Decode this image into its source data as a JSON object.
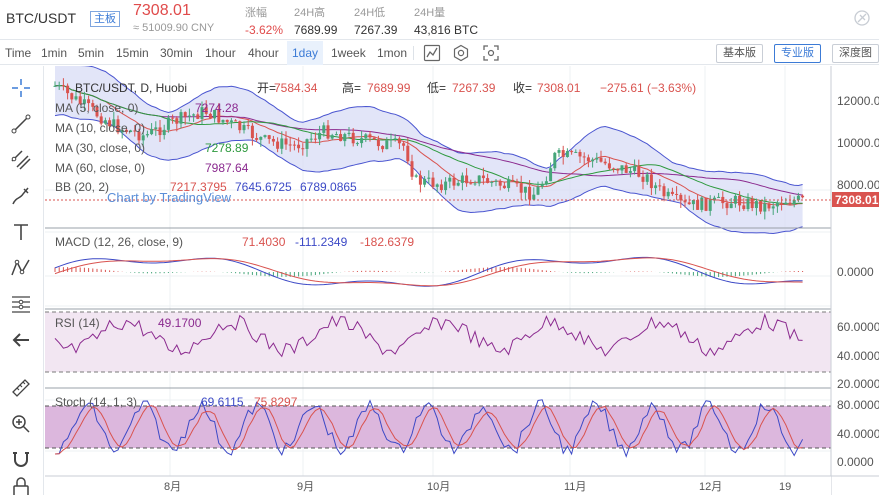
{
  "header": {
    "pair": "BTC/USDT",
    "board_badge": "主板",
    "last_price": "7308.01",
    "cny_price": "≈ 51009.90 CNY",
    "stats": [
      {
        "label": "涨幅",
        "value": "-3.62%",
        "negative": true
      },
      {
        "label": "24H高",
        "value": "7689.99",
        "negative": false
      },
      {
        "label": "24H低",
        "value": "7267.39",
        "negative": false
      },
      {
        "label": "24H量",
        "value": "43,816 BTC",
        "negative": false
      }
    ]
  },
  "toolbar": {
    "timeframes": [
      "Time",
      "1min",
      "5min",
      "15min",
      "30min",
      "1hour",
      "4hour",
      "1day",
      "1week",
      "1mon"
    ],
    "active_timeframe": "1day",
    "icons": [
      "indicator-icon",
      "settings-icon",
      "fullscreen-icon"
    ],
    "view_buttons": [
      "基本版",
      "专业版",
      "深度图"
    ],
    "active_view": "专业版"
  },
  "left_tools": [
    "crosshair-icon",
    "trend-line-icon",
    "parallel-lines-icon",
    "brush-icon",
    "text-icon",
    "pattern-icon",
    "fib-icon",
    "back-arrow-icon",
    "ruler-icon",
    "zoom-in-icon",
    "magnet-icon",
    "lock-icon"
  ],
  "chart": {
    "main_legend": {
      "title": "BTC/USDT, D, Huobi",
      "open_label": "开=",
      "open": "7584.34",
      "high_label": "高=",
      "high": "7689.99",
      "low_label": "低=",
      "low": "7267.39",
      "close_label": "收=",
      "close": "7308.01",
      "change": "−275.61 (−3.63%)"
    },
    "ma_rows": [
      {
        "label": "MA (5, close, 0)",
        "value": "7274.28",
        "color": "#8b2a8f"
      },
      {
        "label": "MA (10, close, 0)",
        "value": "",
        "color": "#7a7a7a"
      },
      {
        "label": "MA (30, close, 0)",
        "value": "7278.89",
        "color": "#2e9a3e"
      },
      {
        "label": "MA (60, close, 0)",
        "value": "7987.64",
        "color": "#8b2a8f"
      }
    ],
    "bb": {
      "label": "BB (20, 2)",
      "mid": "7217.3795",
      "upper": "7645.6725",
      "lower": "6789.0865"
    },
    "watermark": "Chart by TradingView",
    "price_axis": [
      "12000.00",
      "10000.00",
      "8000.00"
    ],
    "price_tag": "7308.01",
    "macd": {
      "label": "MACD (12, 26, close, 9)",
      "v1": "71.4030",
      "v2": "-111.2349",
      "v3": "-182.6379",
      "axis": [
        "0.0000"
      ]
    },
    "rsi": {
      "label": "RSI (14)",
      "value": "49.1700",
      "axis": [
        "60.0000",
        "40.0000",
        "20.0000"
      ]
    },
    "stoch": {
      "label": "Stoch (14, 1, 3)",
      "v1": "69.6115",
      "v2": "75.8297",
      "axis": [
        "80.0000",
        "40.0000",
        "0.0000"
      ]
    },
    "x_axis": [
      "8月",
      "9月",
      "10月",
      "11月",
      "12月",
      "19"
    ]
  },
  "colors": {
    "up": "#46a67a",
    "down": "#d9534f",
    "accent": "#3c7bd6",
    "bb_fill": "#d8dcf5",
    "rsi_fill": "#f2e6f2",
    "stoch_fill": "#dcb7dd"
  }
}
